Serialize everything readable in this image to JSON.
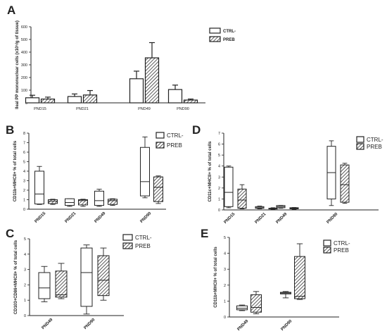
{
  "chart_data": [
    {
      "panel": "A",
      "type": "bar",
      "ylabel": "Ileal PP mononuclear cells (x10⁵/g of tissue)",
      "ylim": [
        0,
        600
      ],
      "yticks": [
        0,
        100,
        200,
        300,
        400,
        500,
        600
      ],
      "ytick_labels": [
        "0",
        "100",
        "200",
        "300",
        "400",
        "500",
        "600"
      ],
      "categories": [
        "PND15",
        "PND21",
        "PND49",
        "PND90"
      ],
      "legend": [
        "CTRL-",
        "PREB"
      ],
      "legend_position": "top-right",
      "series": [
        {
          "name": "CTRL-",
          "values": [
            40,
            50,
            190,
            105
          ],
          "errors": [
            20,
            20,
            60,
            35
          ]
        },
        {
          "name": "PREB",
          "values": [
            30,
            62,
            355,
            22
          ],
          "errors": [
            15,
            35,
            120,
            8
          ]
        }
      ]
    },
    {
      "panel": "B",
      "type": "box",
      "ylabel": "CD11b+MHCII+ % of total cells",
      "ylim": [
        0,
        8
      ],
      "yticks": [
        0,
        1,
        2,
        3,
        4,
        5,
        6,
        7,
        8
      ],
      "ytick_labels": [
        "0",
        "1",
        "2",
        "3",
        "4",
        "5",
        "6",
        "7",
        "8"
      ],
      "categories": [
        "PND15",
        "PND21",
        "PND49",
        "PND90"
      ],
      "legend": [
        "CTRL-",
        "PREB"
      ],
      "legend_position": "top-right",
      "series": [
        {
          "name": "CTRL-",
          "boxes": [
            [
              0.5,
              0.55,
              1.6,
              4.0,
              4.5
            ],
            [
              0.3,
              0.4,
              0.7,
              1.1,
              1.1
            ],
            [
              0.3,
              0.4,
              0.9,
              1.9,
              2.1
            ],
            [
              1.2,
              1.4,
              2.9,
              6.5,
              7.6
            ]
          ]
        },
        {
          "name": "PREB",
          "boxes": [
            [
              0.5,
              0.6,
              0.85,
              1.0,
              1.05
            ],
            [
              0.3,
              0.45,
              0.9,
              1.0,
              1.05
            ],
            [
              0.4,
              0.5,
              0.9,
              1.05,
              1.1
            ],
            [
              0.6,
              0.8,
              2.3,
              3.4,
              3.5
            ]
          ]
        }
      ]
    },
    {
      "panel": "D",
      "type": "box",
      "ylabel": "CD11c+MHCII+ % of total cells",
      "ylim": [
        0,
        7
      ],
      "yticks": [
        0,
        1,
        2,
        3,
        4,
        5,
        6,
        7
      ],
      "ytick_labels": [
        "0",
        "1",
        "2",
        "3",
        "4",
        "5",
        "6",
        "7"
      ],
      "categories": [
        "PND15",
        "PND21",
        "PND49",
        "PND90"
      ],
      "legend": [
        "CTRL-",
        "PREB"
      ],
      "legend_position": "top-right",
      "series": [
        {
          "name": "CTRL-",
          "boxes": [
            [
              0.2,
              0.3,
              1.6,
              3.9,
              4.0
            ],
            [
              0.1,
              0.15,
              0.2,
              0.3,
              0.35
            ],
            [
              0.15,
              0.2,
              0.3,
              0.4,
              0.42
            ],
            [
              0.4,
              1.0,
              3.4,
              5.8,
              6.3
            ]
          ]
        },
        {
          "name": "PREB",
          "boxes": [
            [
              0.1,
              0.15,
              0.9,
              1.9,
              2.3
            ],
            [
              0.05,
              0.1,
              0.12,
              0.15,
              0.2
            ],
            [
              0.05,
              0.1,
              0.15,
              0.2,
              0.22
            ],
            [
              0.6,
              0.7,
              2.3,
              4.1,
              4.25
            ]
          ]
        }
      ]
    },
    {
      "panel": "C",
      "type": "box",
      "ylabel": "CD103+CD86+MHCII+ % of total cells",
      "ylim": [
        0,
        5
      ],
      "yticks": [
        0,
        1,
        2,
        3,
        4,
        5
      ],
      "ytick_labels": [
        "0",
        "1",
        "2",
        "3",
        "4",
        "5"
      ],
      "categories": [
        "PND49",
        "PND90"
      ],
      "legend": [
        "CTRL-",
        "PREB"
      ],
      "legend_position": "top-right",
      "series": [
        {
          "name": "CTRL-",
          "boxes": [
            [
              0.9,
              1.1,
              1.8,
              2.8,
              3.2
            ],
            [
              0.1,
              0.6,
              2.8,
              4.4,
              4.6
            ]
          ]
        },
        {
          "name": "PREB",
          "boxes": [
            [
              1.1,
              1.2,
              1.35,
              2.9,
              3.4
            ],
            [
              1.0,
              1.3,
              2.3,
              3.9,
              4.4
            ]
          ]
        }
      ]
    },
    {
      "panel": "E",
      "type": "box",
      "ylabel": "CD11b+MHCII+ % of total cells",
      "ylim": [
        0,
        5
      ],
      "yticks": [
        0,
        1,
        2,
        3,
        4,
        5
      ],
      "ytick_labels": [
        "0",
        "1",
        "2",
        "3",
        "4",
        "5"
      ],
      "categories": [
        "PND49",
        "PND90"
      ],
      "legend": [
        "CTRL-",
        "PREB"
      ],
      "legend_position": "top-right",
      "series": [
        {
          "name": "CTRL-",
          "boxes": [
            [
              0.4,
              0.45,
              0.55,
              0.7,
              0.75
            ],
            [
              1.2,
              1.45,
              1.5,
              1.55,
              1.6
            ]
          ]
        },
        {
          "name": "PREB",
          "boxes": [
            [
              0.2,
              0.3,
              0.6,
              1.4,
              1.6
            ],
            [
              1.1,
              1.15,
              1.3,
              3.8,
              4.6
            ]
          ]
        }
      ]
    }
  ]
}
